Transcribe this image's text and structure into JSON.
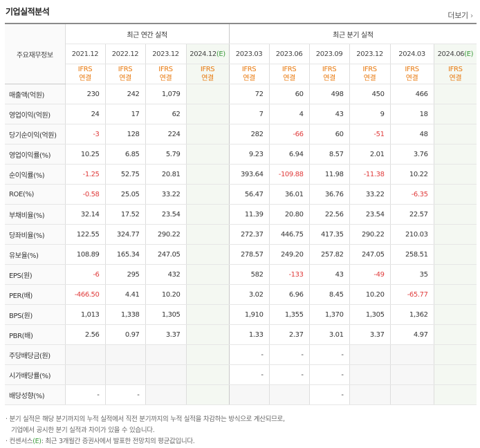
{
  "header": {
    "title": "기업실적분석",
    "more_label": "더보기"
  },
  "table": {
    "corner_label": "주요재무정보",
    "annual_group_label": "최근 연간 실적",
    "quarter_group_label": "최근 분기 실적",
    "periods": [
      {
        "label": "2021.12",
        "estimate": false
      },
      {
        "label": "2022.12",
        "estimate": false
      },
      {
        "label": "2023.12",
        "estimate": false
      },
      {
        "label": "2024.12",
        "estimate": true,
        "mark": "(E)"
      },
      {
        "label": "2023.03",
        "estimate": false
      },
      {
        "label": "2023.06",
        "estimate": false
      },
      {
        "label": "2023.09",
        "estimate": false
      },
      {
        "label": "2023.12",
        "estimate": false
      },
      {
        "label": "2024.03",
        "estimate": false
      },
      {
        "label": "2024.06",
        "estimate": true,
        "mark": "(E)"
      }
    ],
    "ifrs_line1": "IFRS",
    "ifrs_line2": "연결",
    "rows": [
      {
        "label": "매출액(억원)",
        "values": [
          "230",
          "242",
          "1,079",
          "",
          "72",
          "60",
          "498",
          "450",
          "466",
          ""
        ]
      },
      {
        "label": "영업이익(억원)",
        "values": [
          "24",
          "17",
          "62",
          "",
          "7",
          "4",
          "43",
          "9",
          "18",
          ""
        ]
      },
      {
        "label": "당기순이익(억원)",
        "values": [
          "-3",
          "128",
          "224",
          "",
          "282",
          "-66",
          "60",
          "-51",
          "48",
          ""
        ]
      },
      {
        "label": "영업이익률(%)",
        "values": [
          "10.25",
          "6.85",
          "5.79",
          "",
          "9.23",
          "6.94",
          "8.57",
          "2.01",
          "3.76",
          ""
        ]
      },
      {
        "label": "순이익률(%)",
        "values": [
          "-1.25",
          "52.75",
          "20.81",
          "",
          "393.64",
          "-109.88",
          "11.98",
          "-11.38",
          "10.22",
          ""
        ]
      },
      {
        "label": "ROE(%)",
        "values": [
          "-0.58",
          "25.05",
          "33.22",
          "",
          "56.47",
          "36.01",
          "36.76",
          "33.22",
          "-6.35",
          ""
        ]
      },
      {
        "label": "부채비율(%)",
        "values": [
          "32.14",
          "17.52",
          "23.54",
          "",
          "11.39",
          "20.80",
          "22.56",
          "23.54",
          "22.57",
          ""
        ]
      },
      {
        "label": "당좌비율(%)",
        "values": [
          "122.55",
          "324.77",
          "290.22",
          "",
          "272.37",
          "446.75",
          "417.35",
          "290.22",
          "210.03",
          ""
        ]
      },
      {
        "label": "유보율(%)",
        "values": [
          "108.89",
          "165.34",
          "247.05",
          "",
          "278.57",
          "249.20",
          "257.82",
          "247.05",
          "258.51",
          ""
        ]
      },
      {
        "label": "EPS(원)",
        "values": [
          "-6",
          "295",
          "432",
          "",
          "582",
          "-133",
          "43",
          "-49",
          "35",
          ""
        ]
      },
      {
        "label": "PER(배)",
        "values": [
          "-466.50",
          "4.41",
          "10.20",
          "",
          "3.02",
          "6.96",
          "8.45",
          "10.20",
          "-65.77",
          ""
        ]
      },
      {
        "label": "BPS(원)",
        "values": [
          "1,013",
          "1,338",
          "1,305",
          "",
          "1,910",
          "1,355",
          "1,370",
          "1,305",
          "1,362",
          ""
        ]
      },
      {
        "label": "PBR(배)",
        "values": [
          "2.56",
          "0.97",
          "3.37",
          "",
          "1.33",
          "2.37",
          "3.01",
          "3.37",
          "4.97",
          ""
        ]
      },
      {
        "label": "주당배당금(원)",
        "values": [
          "",
          "",
          "",
          "",
          "-",
          "-",
          "-",
          "",
          "",
          ""
        ],
        "blank_annual": true
      },
      {
        "label": "시가배당률(%)",
        "values": [
          "",
          "",
          "",
          "",
          "-",
          "-",
          "-",
          "",
          "",
          ""
        ],
        "blank_annual": true
      },
      {
        "label": "배당성향(%)",
        "values": [
          "-",
          "-",
          "",
          "",
          "",
          "",
          "-",
          "",
          "",
          ""
        ],
        "blank_annual": false
      }
    ]
  },
  "notes": {
    "line1": "· 분기 실적은 해당 분기까지의 누적 실적에서 직전 분기까지의 누적 실적을 차감하는 방식으로 계산되므로,",
    "line2": "기업에서 공시한 분기 실적과 차이가 있을 수 있습니다.",
    "line3_prefix": "· 컨센서스",
    "line3_mark": "(E)",
    "line3_suffix": ": 최근 3개월간 증권사에서 발표한 전망치의 평균값입니다."
  }
}
